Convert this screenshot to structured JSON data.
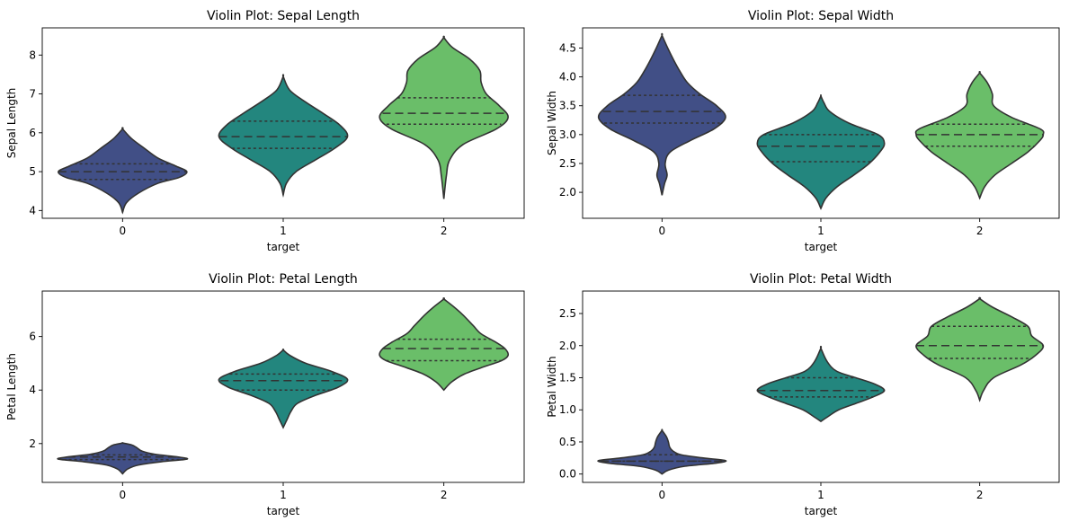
{
  "chart_data": [
    {
      "type": "violin",
      "title": "Violin Plot: Sepal Length",
      "xlabel": "target",
      "ylabel": "Sepal Length",
      "categories": [
        "0",
        "1",
        "2"
      ],
      "colors": [
        "#414f86",
        "#23867e",
        "#6abe69"
      ],
      "ylim": [
        3.8,
        8.7
      ],
      "yticks": [
        4,
        5,
        6,
        7,
        8
      ],
      "ytick_labels": [
        "4",
        "5",
        "6",
        "7",
        "8"
      ],
      "violins": [
        {
          "category": "0",
          "min": 3.95,
          "max": 6.1,
          "q1": 4.8,
          "median": 5.0,
          "q3": 5.2,
          "profile": [
            [
              3.95,
              0
            ],
            [
              4.2,
              0.06
            ],
            [
              4.45,
              0.25
            ],
            [
              4.7,
              0.55
            ],
            [
              4.85,
              0.88
            ],
            [
              5.0,
              1.0
            ],
            [
              5.15,
              0.82
            ],
            [
              5.35,
              0.55
            ],
            [
              5.6,
              0.34
            ],
            [
              5.85,
              0.14
            ],
            [
              6.1,
              0
            ]
          ]
        },
        {
          "category": "1",
          "min": 4.4,
          "max": 7.45,
          "q1": 5.6,
          "median": 5.9,
          "q3": 6.3,
          "profile": [
            [
              4.4,
              0
            ],
            [
              4.7,
              0.05
            ],
            [
              5.0,
              0.2
            ],
            [
              5.3,
              0.5
            ],
            [
              5.6,
              0.8
            ],
            [
              5.9,
              1.0
            ],
            [
              6.2,
              0.88
            ],
            [
              6.5,
              0.62
            ],
            [
              6.8,
              0.34
            ],
            [
              7.1,
              0.1
            ],
            [
              7.45,
              0
            ]
          ]
        },
        {
          "category": "2",
          "min": 4.3,
          "max": 8.45,
          "q1": 6.22,
          "median": 6.5,
          "q3": 6.9,
          "profile": [
            [
              4.3,
              0
            ],
            [
              4.9,
              0.04
            ],
            [
              5.3,
              0.09
            ],
            [
              5.7,
              0.3
            ],
            [
              6.1,
              0.82
            ],
            [
              6.4,
              1.0
            ],
            [
              6.7,
              0.86
            ],
            [
              7.0,
              0.66
            ],
            [
              7.3,
              0.58
            ],
            [
              7.6,
              0.56
            ],
            [
              7.9,
              0.4
            ],
            [
              8.2,
              0.13
            ],
            [
              8.45,
              0
            ]
          ]
        }
      ]
    },
    {
      "type": "violin",
      "title": "Violin Plot: Sepal Width",
      "xlabel": "target",
      "ylabel": "Sepal Width",
      "categories": [
        "0",
        "1",
        "2"
      ],
      "colors": [
        "#414f86",
        "#23867e",
        "#6abe69"
      ],
      "ylim": [
        1.55,
        4.85
      ],
      "yticks": [
        2.0,
        2.5,
        3.0,
        3.5,
        4.0,
        4.5
      ],
      "ytick_labels": [
        "2.0",
        "2.5",
        "3.0",
        "3.5",
        "4.0",
        "4.5"
      ],
      "violins": [
        {
          "category": "0",
          "min": 1.95,
          "max": 4.72,
          "q1": 3.2,
          "median": 3.4,
          "q3": 3.68,
          "profile": [
            [
              1.95,
              0
            ],
            [
              2.15,
              0.04
            ],
            [
              2.3,
              0.08
            ],
            [
              2.5,
              0.05
            ],
            [
              2.7,
              0.13
            ],
            [
              2.9,
              0.45
            ],
            [
              3.1,
              0.82
            ],
            [
              3.3,
              1.0
            ],
            [
              3.5,
              0.86
            ],
            [
              3.7,
              0.6
            ],
            [
              3.9,
              0.4
            ],
            [
              4.1,
              0.28
            ],
            [
              4.3,
              0.18
            ],
            [
              4.5,
              0.09
            ],
            [
              4.72,
              0
            ]
          ]
        },
        {
          "category": "1",
          "min": 1.72,
          "max": 3.67,
          "q1": 2.53,
          "median": 2.8,
          "q3": 3.0,
          "profile": [
            [
              1.72,
              0
            ],
            [
              1.9,
              0.08
            ],
            [
              2.1,
              0.26
            ],
            [
              2.3,
              0.52
            ],
            [
              2.5,
              0.76
            ],
            [
              2.7,
              0.93
            ],
            [
              2.85,
              1.0
            ],
            [
              3.0,
              0.9
            ],
            [
              3.2,
              0.44
            ],
            [
              3.4,
              0.14
            ],
            [
              3.55,
              0.05
            ],
            [
              3.67,
              0
            ]
          ]
        },
        {
          "category": "2",
          "min": 1.9,
          "max": 4.07,
          "q1": 2.8,
          "median": 3.0,
          "q3": 3.18,
          "profile": [
            [
              1.9,
              0
            ],
            [
              2.1,
              0.08
            ],
            [
              2.3,
              0.24
            ],
            [
              2.5,
              0.5
            ],
            [
              2.7,
              0.76
            ],
            [
              2.9,
              0.95
            ],
            [
              3.0,
              1.0
            ],
            [
              3.1,
              0.95
            ],
            [
              3.3,
              0.5
            ],
            [
              3.5,
              0.22
            ],
            [
              3.7,
              0.2
            ],
            [
              3.9,
              0.12
            ],
            [
              4.07,
              0
            ]
          ]
        }
      ]
    },
    {
      "type": "violin",
      "title": "Violin Plot: Petal Length",
      "xlabel": "target",
      "ylabel": "Petal Length",
      "categories": [
        "0",
        "1",
        "2"
      ],
      "colors": [
        "#414f86",
        "#23867e",
        "#6abe69"
      ],
      "ylim": [
        0.55,
        7.7
      ],
      "yticks": [
        2,
        4,
        6
      ],
      "ytick_labels": [
        "2",
        "4",
        "6"
      ],
      "violins": [
        {
          "category": "0",
          "min": 0.87,
          "max": 2.02,
          "q1": 1.4,
          "median": 1.5,
          "q3": 1.58,
          "profile": [
            [
              0.87,
              0
            ],
            [
              1.05,
              0.08
            ],
            [
              1.2,
              0.25
            ],
            [
              1.32,
              0.6
            ],
            [
              1.42,
              1.0
            ],
            [
              1.5,
              0.86
            ],
            [
              1.6,
              0.5
            ],
            [
              1.72,
              0.3
            ],
            [
              1.85,
              0.22
            ],
            [
              1.95,
              0.14
            ],
            [
              2.02,
              0
            ]
          ]
        },
        {
          "category": "1",
          "min": 2.6,
          "max": 5.5,
          "q1": 4.0,
          "median": 4.35,
          "q3": 4.6,
          "profile": [
            [
              2.6,
              0
            ],
            [
              2.9,
              0.06
            ],
            [
              3.2,
              0.12
            ],
            [
              3.5,
              0.22
            ],
            [
              3.8,
              0.5
            ],
            [
              4.1,
              0.85
            ],
            [
              4.4,
              1.0
            ],
            [
              4.7,
              0.75
            ],
            [
              5.0,
              0.35
            ],
            [
              5.3,
              0.1
            ],
            [
              5.5,
              0
            ]
          ]
        },
        {
          "category": "2",
          "min": 4.0,
          "max": 7.4,
          "q1": 5.1,
          "median": 5.55,
          "q3": 5.9,
          "profile": [
            [
              4.0,
              0
            ],
            [
              4.3,
              0.12
            ],
            [
              4.6,
              0.32
            ],
            [
              4.9,
              0.66
            ],
            [
              5.1,
              0.9
            ],
            [
              5.3,
              1.0
            ],
            [
              5.55,
              0.95
            ],
            [
              5.8,
              0.8
            ],
            [
              6.1,
              0.58
            ],
            [
              6.4,
              0.46
            ],
            [
              6.8,
              0.3
            ],
            [
              7.1,
              0.16
            ],
            [
              7.4,
              0
            ]
          ]
        }
      ]
    },
    {
      "type": "violin",
      "title": "Violin Plot: Petal Width",
      "xlabel": "target",
      "ylabel": "Petal Width",
      "categories": [
        "0",
        "1",
        "2"
      ],
      "colors": [
        "#414f86",
        "#23867e",
        "#6abe69"
      ],
      "ylim": [
        -0.13,
        2.85
      ],
      "yticks": [
        0.0,
        0.5,
        1.0,
        1.5,
        2.0,
        2.5
      ],
      "ytick_labels": [
        "0.0",
        "0.5",
        "1.0",
        "1.5",
        "2.0",
        "2.5"
      ],
      "violins": [
        {
          "category": "0",
          "min": 0.0,
          "max": 0.68,
          "q1": 0.2,
          "median": 0.2,
          "q3": 0.3,
          "profile": [
            [
              0.0,
              0
            ],
            [
              0.06,
              0.1
            ],
            [
              0.12,
              0.35
            ],
            [
              0.17,
              0.85
            ],
            [
              0.21,
              1.0
            ],
            [
              0.25,
              0.65
            ],
            [
              0.3,
              0.3
            ],
            [
              0.36,
              0.17
            ],
            [
              0.42,
              0.12
            ],
            [
              0.5,
              0.1
            ],
            [
              0.58,
              0.07
            ],
            [
              0.68,
              0
            ]
          ]
        },
        {
          "category": "1",
          "min": 0.82,
          "max": 1.96,
          "q1": 1.2,
          "median": 1.3,
          "q3": 1.5,
          "profile": [
            [
              0.82,
              0
            ],
            [
              0.9,
              0.12
            ],
            [
              1.0,
              0.28
            ],
            [
              1.1,
              0.55
            ],
            [
              1.2,
              0.82
            ],
            [
              1.3,
              1.0
            ],
            [
              1.4,
              0.85
            ],
            [
              1.5,
              0.55
            ],
            [
              1.6,
              0.25
            ],
            [
              1.75,
              0.1
            ],
            [
              1.96,
              0
            ]
          ]
        },
        {
          "category": "2",
          "min": 1.15,
          "max": 2.73,
          "q1": 1.8,
          "median": 2.0,
          "q3": 2.3,
          "profile": [
            [
              1.15,
              0
            ],
            [
              1.3,
              0.06
            ],
            [
              1.5,
              0.22
            ],
            [
              1.7,
              0.65
            ],
            [
              1.85,
              0.88
            ],
            [
              2.0,
              1.0
            ],
            [
              2.15,
              0.82
            ],
            [
              2.3,
              0.76
            ],
            [
              2.45,
              0.5
            ],
            [
              2.6,
              0.2
            ],
            [
              2.73,
              0
            ]
          ]
        }
      ]
    }
  ]
}
